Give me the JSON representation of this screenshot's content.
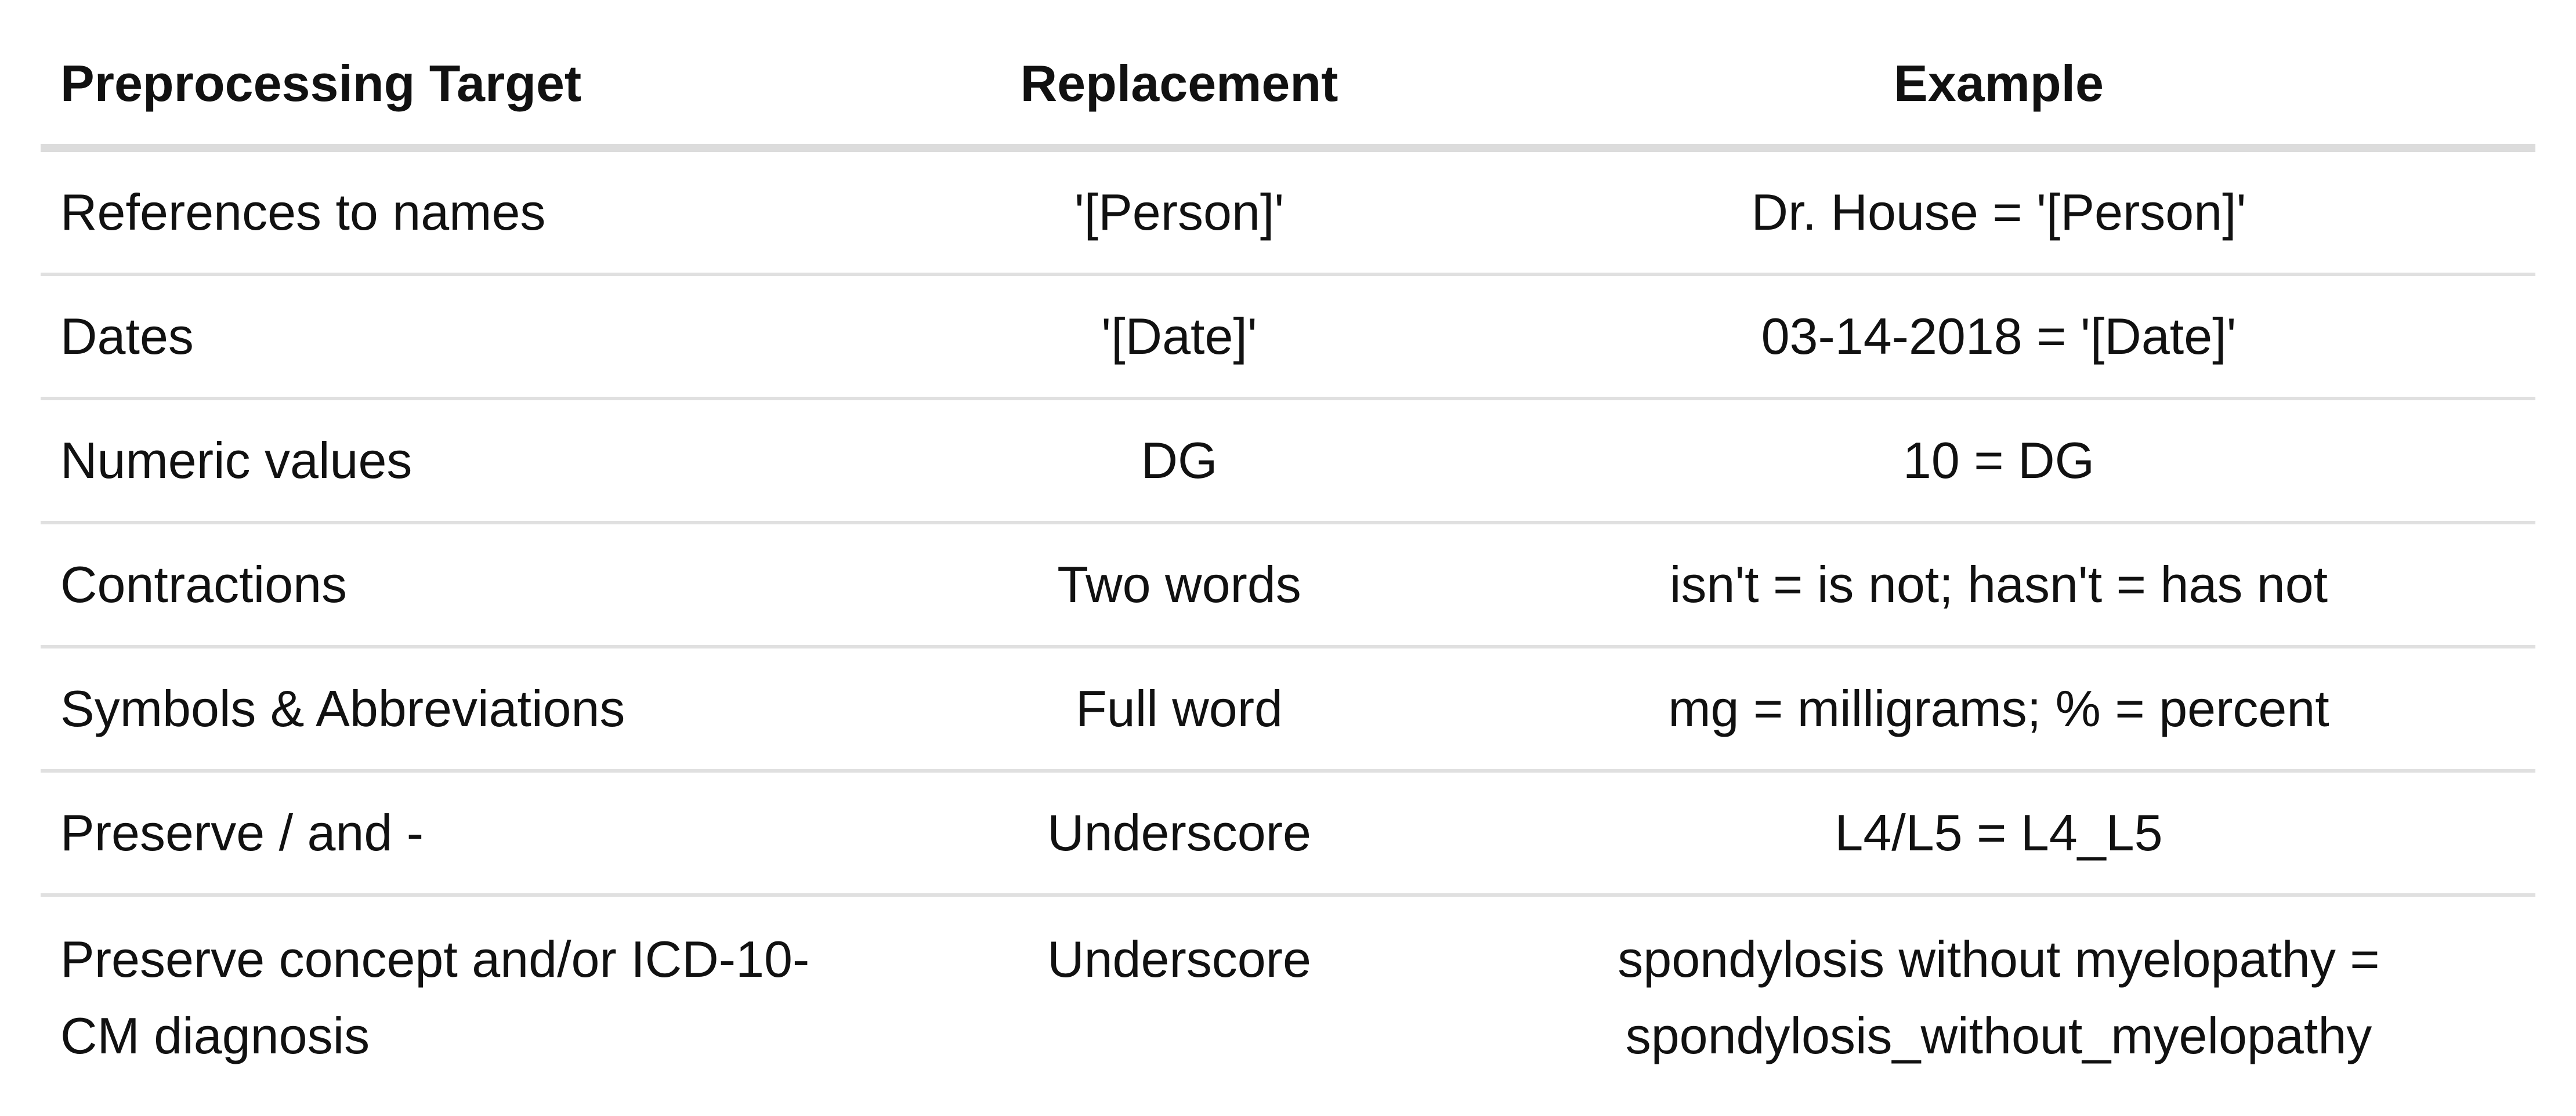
{
  "table": {
    "headers": [
      "Preprocessing Target",
      "Replacement",
      "Example"
    ],
    "rows": [
      [
        "References to names",
        "'[Person]'",
        "Dr. House = '[Person]'"
      ],
      [
        "Dates",
        "'[Date]'",
        "03-14-2018 = '[Date]'"
      ],
      [
        "Numeric values",
        "DG",
        "10 = DG"
      ],
      [
        "Contractions",
        "Two words",
        "isn't = is not; hasn't = has not"
      ],
      [
        "Symbols & Abbreviations",
        "Full word",
        "mg = milligrams; % = percent"
      ],
      [
        "Preserve / and -",
        "Underscore",
        "L4/L5 = L4_L5"
      ],
      [
        "Preserve concept and/or ICD-10-CM diagnosis",
        "Underscore",
        "spondylosis without myelopathy = spondylosis_without_myelopathy"
      ]
    ]
  },
  "colors": {
    "text": "#111111",
    "header_rule": "#dcdcdc",
    "row_rule": "#e0e0e0",
    "background": "#ffffff"
  }
}
